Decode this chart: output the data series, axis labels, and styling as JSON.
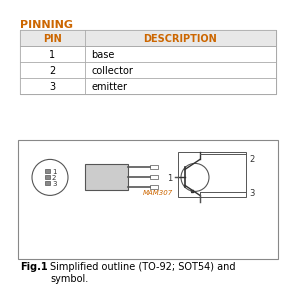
{
  "title": "PINNING",
  "table_headers": [
    "PIN",
    "DESCRIPTION"
  ],
  "table_rows": [
    [
      "1",
      "base"
    ],
    [
      "2",
      "collector"
    ],
    [
      "3",
      "emitter"
    ]
  ],
  "fig_label": "Fig.1",
  "fig_caption": "Simplified outline (TO-92; SOT54) and\nsymbol.",
  "watermark": "MAM307",
  "bg_color": "#ffffff",
  "title_color": "#cc6600",
  "header_color": "#cc6600",
  "border_color": "#666666",
  "text_color": "#000000",
  "fig_box_color": "#888888"
}
